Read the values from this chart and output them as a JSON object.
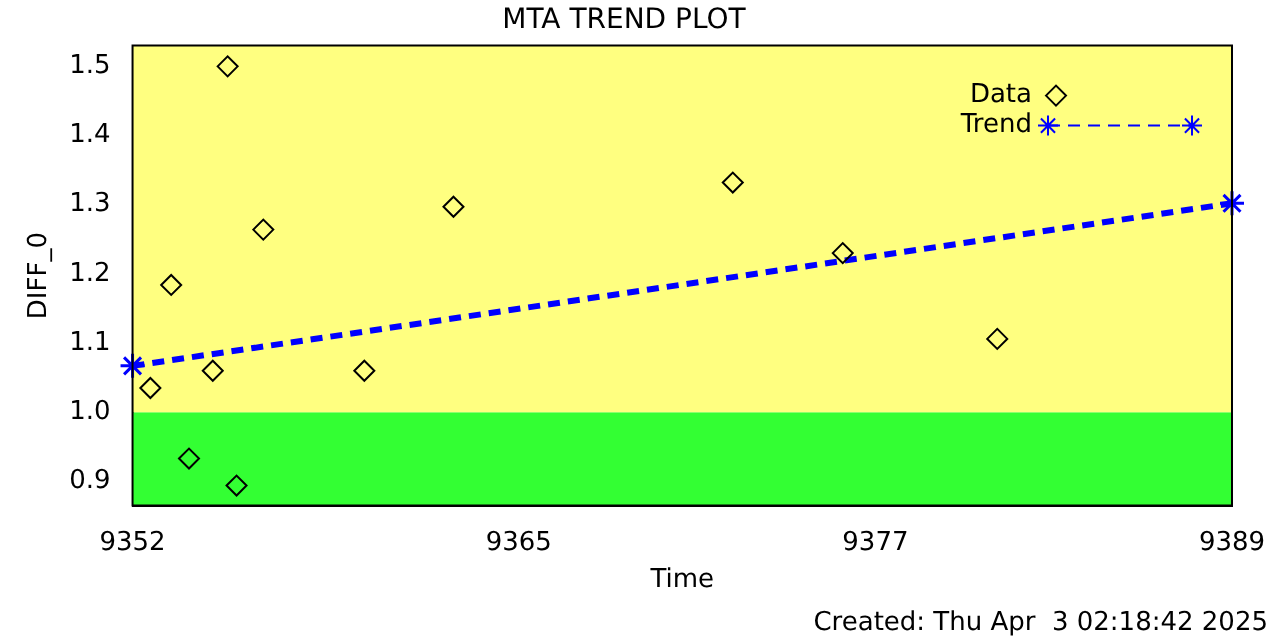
{
  "chart_data": {
    "type": "scatter",
    "title": "MTA TREND PLOT",
    "xlabel": "Time",
    "ylabel": "DIFF_0",
    "xlim": [
      9352,
      9389
    ],
    "xticks": [
      9352,
      9365,
      9377,
      9389
    ],
    "ylim": [
      0.865,
      1.53
    ],
    "yticks": [
      0.9,
      {
        "value": 1,
        "label": "1.0"
      },
      1.1,
      1.2,
      1.3,
      1.4,
      1.5
    ],
    "grid": false,
    "legend": "top right",
    "series": [
      {
        "name": "Data",
        "type": "scatter",
        "color": "#000000",
        "marker": "diamond",
        "x": [
          9352.6,
          9353.3,
          9353.9,
          9354.7,
          9355.2,
          9355.5,
          9356.4,
          9359.8,
          9362.8,
          9372.2,
          9375.9,
          9381.1
        ],
        "values": [
          1.035,
          1.184,
          0.933,
          1.06,
          1.5,
          0.894,
          1.264,
          1.06,
          1.297,
          1.332,
          1.23,
          1.106
        ]
      },
      {
        "name": "Trend",
        "type": "line",
        "color": "#0000ff",
        "marker": "cross",
        "line_style": "dashed",
        "x": [
          9352,
          9389
        ],
        "values": [
          1.067,
          1.302
        ]
      }
    ],
    "bands": [
      {
        "axis": "y",
        "from": 0.865,
        "to": 1.0,
        "color": "#33ff33"
      },
      {
        "axis": "y",
        "from": 1.0,
        "to": 1.53,
        "color": "#ffff80"
      }
    ],
    "annotations": [
      "Created: Thu Apr  3 02:18:42 2025"
    ]
  }
}
